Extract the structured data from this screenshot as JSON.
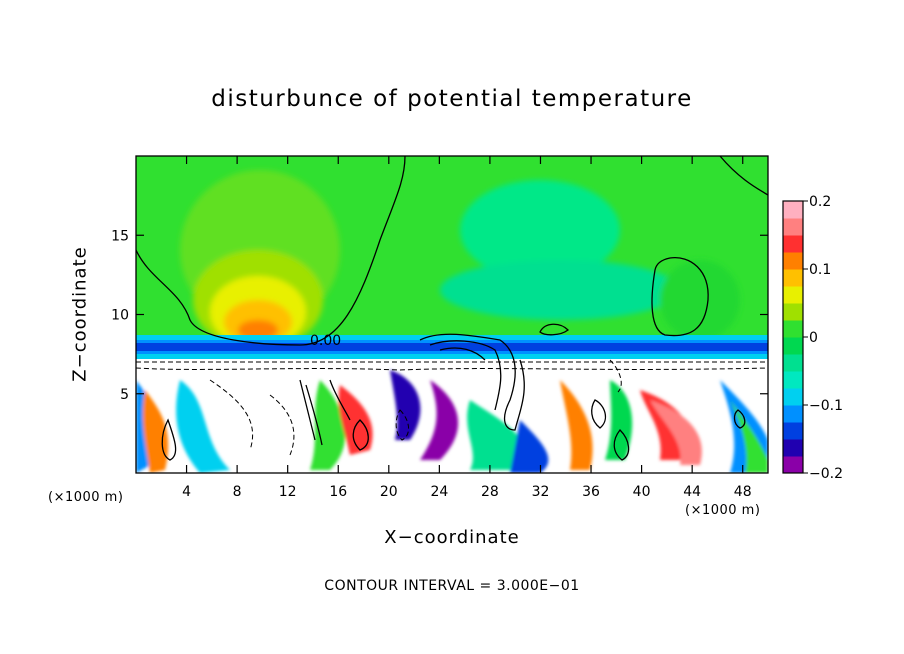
{
  "chart_data": {
    "type": "heatmap",
    "title": "disturbunce of potential temperature",
    "xlabel": "X−coordinate",
    "ylabel": "Z−coordinate",
    "x_unit": "(×1000 m)",
    "footer": "CONTOUR INTERVAL = 3.000E−01",
    "xlim": [
      0,
      50
    ],
    "ylim": [
      0,
      20
    ],
    "x_ticks": [
      4,
      8,
      12,
      16,
      20,
      24,
      28,
      32,
      36,
      40,
      44,
      48
    ],
    "y_ticks": [
      5,
      10,
      15
    ],
    "colorbar": {
      "range": [
        -0.2,
        0.2
      ],
      "tick_values": [
        0.2,
        0.1,
        0,
        -0.1,
        -0.2
      ],
      "tick_labels": [
        "0.2",
        "0.1",
        "0",
        "−0.1",
        "−0.2"
      ],
      "colors": [
        "#8a00a8",
        "#2000b0",
        "#0040e0",
        "#0090ff",
        "#00d0f0",
        "#00e8c0",
        "#00e090",
        "#00d850",
        "#30e030",
        "#a0e000",
        "#e8f000",
        "#ffc000",
        "#ff8000",
        "#ff3030",
        "#ff8080",
        "#ffb0c0"
      ]
    },
    "contour_label": "0.00",
    "grid": false
  }
}
